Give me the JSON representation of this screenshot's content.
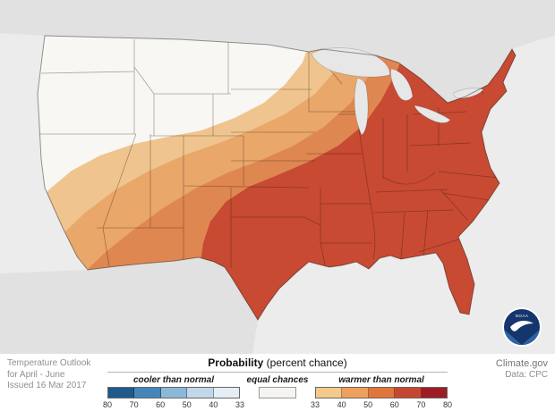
{
  "map": {
    "ocean": "#ececec",
    "foreign_land": "#e1e1e1",
    "equal_chances_fill": "#f8f7f3",
    "band_33_40": "#f0c48e",
    "band_40_50": "#e9a76a",
    "band_50_60": "#df8751",
    "band_60_70": "#c84a33",
    "lake_fill": "#e7e7e7",
    "lake_border": "rgba(0,0,0,0.18)",
    "state_border_color": "rgba(45,20,10,0.38)",
    "outline_color": "rgba(0,0,0,0.4)",
    "noaa_navy": "#15356d",
    "noaa_blue": "#2e64a5"
  },
  "footer": {
    "left": {
      "line1": "Temperature Outlook",
      "line2": "for April - June",
      "line3": "Issued 16 Mar 2017"
    },
    "title_bold": "Probability",
    "title_rest": " (percent chance)",
    "legend": {
      "cooler_label": "cooler than normal",
      "equal_label": "equal chances",
      "warmer_label": "warmer than normal",
      "cooler_colors": [
        "#20598c",
        "#4486ba",
        "#8cb8d8",
        "#c2d8ea",
        "#e6eef5"
      ],
      "warmer_colors": [
        "#f5c98c",
        "#eda15d",
        "#e0763c",
        "#c64731",
        "#9c1d24"
      ],
      "equal_color": "#f6f4f0",
      "cooler_ticks": [
        "80",
        "70",
        "60",
        "50",
        "40",
        "33"
      ],
      "warmer_ticks": [
        "33",
        "40",
        "50",
        "60",
        "70",
        "80"
      ]
    },
    "right": {
      "line1": "Climate.gov",
      "line2": "Data: CPC"
    },
    "noaa_text": "NOAA"
  }
}
